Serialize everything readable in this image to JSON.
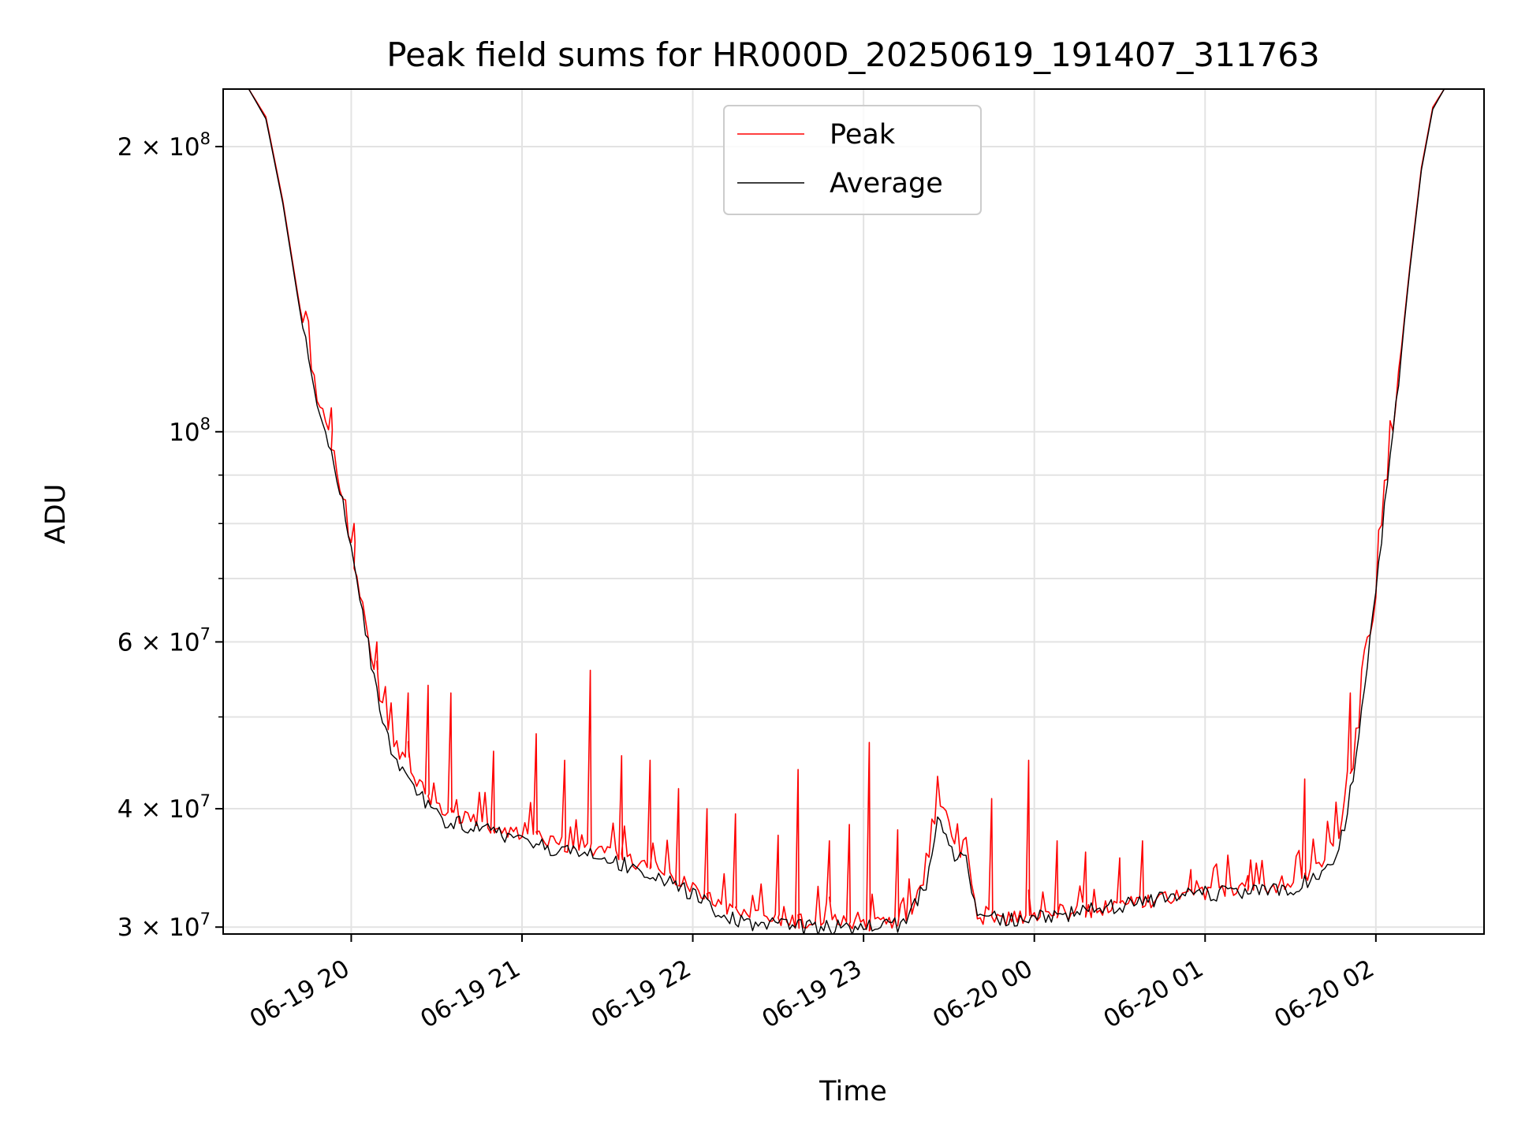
{
  "chart_data": {
    "type": "line",
    "title": "Peak field sums for HR000D_20250619_191407_311763",
    "xlabel": "Time",
    "ylabel": "ADU",
    "y_scale": "log",
    "ylim": [
      29500000,
      230000000
    ],
    "xlim": [
      "2025-06-19 19:15",
      "2025-06-20 02:38"
    ],
    "grid": true,
    "legend_position": "upper-center",
    "x_ticks": [
      {
        "t": "2025-06-19 20:00",
        "label": "06-19 20"
      },
      {
        "t": "2025-06-19 21:00",
        "label": "06-19 21"
      },
      {
        "t": "2025-06-19 22:00",
        "label": "06-19 22"
      },
      {
        "t": "2025-06-19 23:00",
        "label": "06-19 23"
      },
      {
        "t": "2025-06-20 00:00",
        "label": "06-20 00"
      },
      {
        "t": "2025-06-20 01:00",
        "label": "06-20 01"
      },
      {
        "t": "2025-06-20 02:00",
        "label": "06-20 02"
      }
    ],
    "y_ticks_major": [
      {
        "v": 30000000,
        "mant": "3",
        "exp": "7"
      },
      {
        "v": 40000000,
        "mant": "4",
        "exp": "7"
      },
      {
        "v": 60000000,
        "mant": "6",
        "exp": "7"
      },
      {
        "v": 100000000,
        "mant": "",
        "exp": "8"
      },
      {
        "v": 200000000,
        "mant": "2",
        "exp": "8"
      }
    ],
    "y_ticks_minor": [
      50000000,
      70000000,
      80000000,
      90000000
    ],
    "series": [
      {
        "name": "Peak",
        "color": "#ff0000",
        "x": [
          "2025-06-19 19:24",
          "2025-06-19 19:30",
          "2025-06-19 19:36",
          "2025-06-19 19:42",
          "2025-06-19 19:48",
          "2025-06-19 19:54",
          "2025-06-19 19:58",
          "2025-06-19 20:03",
          "2025-06-19 20:08",
          "2025-06-19 20:14",
          "2025-06-19 20:22",
          "2025-06-19 20:32",
          "2025-06-19 20:45",
          "2025-06-19 21:00",
          "2025-06-19 21:15",
          "2025-06-19 21:30",
          "2025-06-19 21:45",
          "2025-06-19 22:00",
          "2025-06-19 22:10",
          "2025-06-19 22:20",
          "2025-06-19 22:35",
          "2025-06-19 22:50",
          "2025-06-19 23:05",
          "2025-06-19 23:15",
          "2025-06-19 23:22",
          "2025-06-19 23:26",
          "2025-06-19 23:30",
          "2025-06-19 23:33",
          "2025-06-19 23:36",
          "2025-06-19 23:40",
          "2025-06-19 23:50",
          "2025-06-20 00:00",
          "2025-06-20 00:15",
          "2025-06-20 00:30",
          "2025-06-20 00:45",
          "2025-06-20 01:00",
          "2025-06-20 01:15",
          "2025-06-20 01:30",
          "2025-06-20 01:40",
          "2025-06-20 01:47",
          "2025-06-20 01:52",
          "2025-06-20 01:56",
          "2025-06-20 02:00",
          "2025-06-20 02:04",
          "2025-06-20 02:08",
          "2025-06-20 02:12",
          "2025-06-20 02:16",
          "2025-06-20 02:20",
          "2025-06-20 02:24"
        ],
        "y": [
          230000000,
          215000000,
          175000000,
          135000000,
          110000000,
          95000000,
          82000000,
          68000000,
          56000000,
          48000000,
          43000000,
          40000000,
          38800000,
          37600000,
          36700000,
          36000000,
          34800000,
          33200000,
          31800000,
          31000000,
          30600000,
          30400000,
          30400000,
          30600000,
          34000000,
          41000000,
          39000000,
          36000000,
          37000000,
          30900000,
          30800000,
          30900000,
          31200000,
          31800000,
          32300000,
          32800000,
          33000000,
          33400000,
          34800000,
          38000000,
          45000000,
          55000000,
          68000000,
          90000000,
          115000000,
          150000000,
          190000000,
          220000000,
          230000000
        ],
        "spikes": [
          {
            "t": "2025-06-19 19:53",
            "v": 106000000
          },
          {
            "t": "2025-06-19 20:01",
            "v": 80000000
          },
          {
            "t": "2025-06-19 20:09",
            "v": 60000000
          },
          {
            "t": "2025-06-19 20:20",
            "v": 53000000
          },
          {
            "t": "2025-06-19 20:27",
            "v": 54000000
          },
          {
            "t": "2025-06-19 20:35",
            "v": 53000000
          },
          {
            "t": "2025-06-19 20:50",
            "v": 46000000
          },
          {
            "t": "2025-06-19 21:05",
            "v": 48000000
          },
          {
            "t": "2025-06-19 21:15",
            "v": 45000000
          },
          {
            "t": "2025-06-19 21:24",
            "v": 56000000
          },
          {
            "t": "2025-06-19 21:35",
            "v": 45500000
          },
          {
            "t": "2025-06-19 21:45",
            "v": 45000000
          },
          {
            "t": "2025-06-19 21:55",
            "v": 42000000
          },
          {
            "t": "2025-06-19 22:05",
            "v": 40000000
          },
          {
            "t": "2025-06-19 22:15",
            "v": 39500000
          },
          {
            "t": "2025-06-19 22:30",
            "v": 37500000
          },
          {
            "t": "2025-06-19 22:37",
            "v": 44000000
          },
          {
            "t": "2025-06-19 22:48",
            "v": 37000000
          },
          {
            "t": "2025-06-19 22:55",
            "v": 38500000
          },
          {
            "t": "2025-06-19 23:02",
            "v": 47000000
          },
          {
            "t": "2025-06-19 23:12",
            "v": 38000000
          },
          {
            "t": "2025-06-19 23:45",
            "v": 41000000
          },
          {
            "t": "2025-06-19 23:58",
            "v": 45000000
          },
          {
            "t": "2025-06-20 00:08",
            "v": 37000000
          },
          {
            "t": "2025-06-20 00:18",
            "v": 36000000
          },
          {
            "t": "2025-06-20 00:30",
            "v": 35500000
          },
          {
            "t": "2025-06-20 00:38",
            "v": 37000000
          },
          {
            "t": "2025-06-20 00:55",
            "v": 34500000
          },
          {
            "t": "2025-06-20 01:15",
            "v": 34000000
          },
          {
            "t": "2025-06-20 01:35",
            "v": 43000000
          },
          {
            "t": "2025-06-20 01:51",
            "v": 53000000
          }
        ]
      },
      {
        "name": "Average",
        "color": "#000000",
        "x": [
          "2025-06-19 19:24",
          "2025-06-19 19:30",
          "2025-06-19 19:36",
          "2025-06-19 19:42",
          "2025-06-19 19:48",
          "2025-06-19 19:54",
          "2025-06-19 19:58",
          "2025-06-19 20:03",
          "2025-06-19 20:08",
          "2025-06-19 20:14",
          "2025-06-19 20:22",
          "2025-06-19 20:32",
          "2025-06-19 20:45",
          "2025-06-19 21:00",
          "2025-06-19 21:15",
          "2025-06-19 21:30",
          "2025-06-19 21:45",
          "2025-06-19 22:00",
          "2025-06-19 22:10",
          "2025-06-19 22:20",
          "2025-06-19 22:35",
          "2025-06-19 22:50",
          "2025-06-19 23:05",
          "2025-06-19 23:15",
          "2025-06-19 23:22",
          "2025-06-19 23:26",
          "2025-06-19 23:30",
          "2025-06-19 23:33",
          "2025-06-19 23:36",
          "2025-06-19 23:40",
          "2025-06-19 23:50",
          "2025-06-20 00:00",
          "2025-06-20 00:15",
          "2025-06-20 00:30",
          "2025-06-20 00:45",
          "2025-06-20 01:00",
          "2025-06-20 01:15",
          "2025-06-20 01:30",
          "2025-06-20 01:40",
          "2025-06-20 01:47",
          "2025-06-20 01:52",
          "2025-06-20 01:56",
          "2025-06-20 02:00",
          "2025-06-20 02:04",
          "2025-06-20 02:08",
          "2025-06-20 02:12",
          "2025-06-20 02:16",
          "2025-06-20 02:20",
          "2025-06-20 02:24"
        ],
        "y": [
          230000000,
          214000000,
          174000000,
          134000000,
          108000000,
          93000000,
          81000000,
          67000000,
          55000000,
          46000000,
          42000000,
          39000000,
          38200000,
          37000000,
          36000000,
          35400000,
          34200000,
          32500000,
          31000000,
          30300000,
          30000000,
          30000000,
          30000000,
          30200000,
          33500000,
          39000000,
          37000000,
          35000000,
          36000000,
          30600000,
          30600000,
          30700000,
          31000000,
          31600000,
          32100000,
          32600000,
          32600000,
          33000000,
          34000000,
          36000000,
          43000000,
          54000000,
          67000000,
          89000000,
          114000000,
          149000000,
          189000000,
          219000000,
          230000000
        ]
      }
    ]
  }
}
